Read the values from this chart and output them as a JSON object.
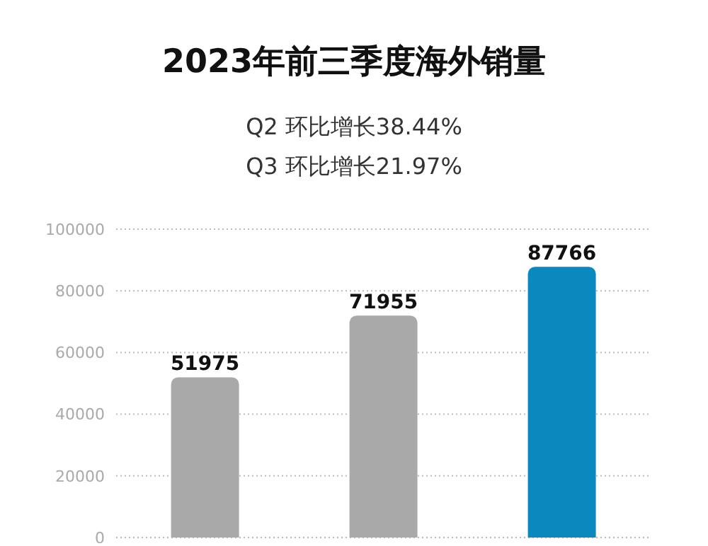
{
  "chart_data": {
    "type": "bar",
    "title": "2023年前三季度海外销量",
    "subtitle": "Q2 环比增长38.44%\nQ3 环比增长21.97%",
    "categories": [
      null,
      null,
      null
    ],
    "values": [
      51975,
      71955,
      87766
    ],
    "colors": [
      "#a9a9a9",
      "#a9a9a9",
      "#0a89bf"
    ],
    "ylim": [
      0,
      100000
    ],
    "yticks": [
      0,
      20000,
      40000,
      60000,
      80000,
      100000
    ],
    "grid": "y",
    "data_labels": true
  }
}
